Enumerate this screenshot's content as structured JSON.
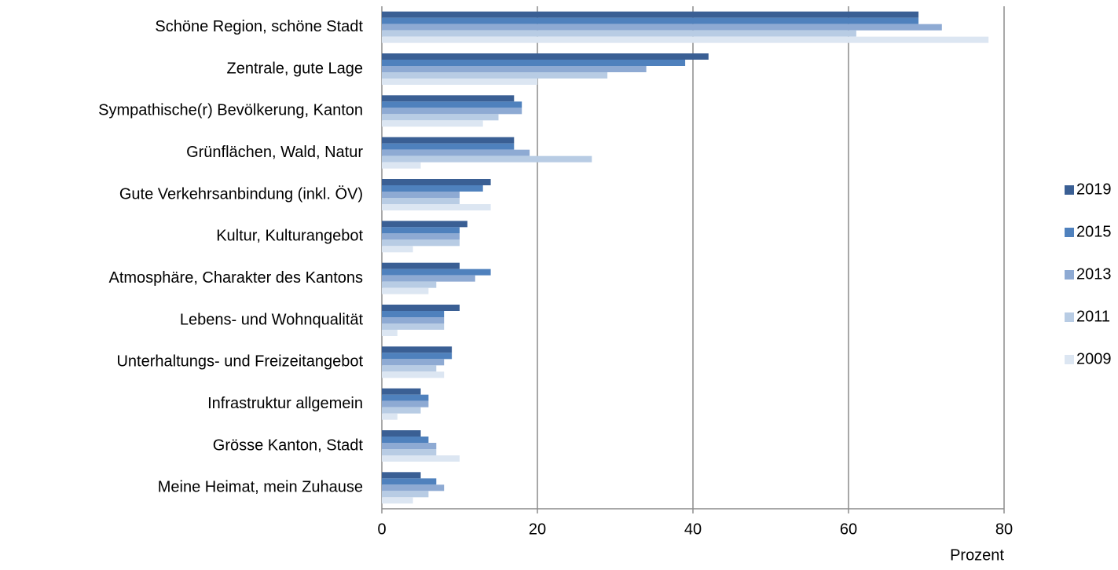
{
  "chart_data": {
    "type": "bar",
    "orientation": "horizontal",
    "x_label": "Prozent",
    "categories": [
      "Schöne Region, schöne Stadt",
      "Zentrale, gute Lage",
      "Sympathische(r) Bevölkerung, Kanton",
      "Grünflächen, Wald, Natur",
      "Gute Verkehrsanbindung (inkl. ÖV)",
      "Kultur, Kulturangebot",
      "Atmosphäre, Charakter des Kantons",
      "Lebens- und Wohnqualität",
      "Unterhaltungs- und Freizeitangebot",
      "Infrastruktur allgemein",
      "Grösse Kanton, Stadt",
      "Meine Heimat, mein Zuhause"
    ],
    "series": [
      {
        "name": "2019",
        "color": "#3a5f94",
        "values": [
          69,
          42,
          17,
          17,
          14,
          11,
          10,
          10,
          9,
          5,
          5,
          5
        ]
      },
      {
        "name": "2015",
        "color": "#4f81bd",
        "values": [
          69,
          39,
          18,
          17,
          13,
          10,
          14,
          8,
          9,
          6,
          6,
          7
        ]
      },
      {
        "name": "2013",
        "color": "#8eaad3",
        "values": [
          72,
          34,
          18,
          19,
          10,
          10,
          12,
          8,
          8,
          6,
          7,
          8
        ]
      },
      {
        "name": "2011",
        "color": "#b8cce4",
        "values": [
          61,
          29,
          15,
          27,
          10,
          10,
          7,
          8,
          7,
          5,
          7,
          6
        ]
      },
      {
        "name": "2009",
        "color": "#dce6f2",
        "values": [
          78,
          20,
          13,
          5,
          14,
          4,
          6,
          2,
          8,
          2,
          10,
          4
        ]
      }
    ],
    "xlim": [
      0,
      80
    ],
    "xticks": [
      0,
      20,
      40,
      60,
      80
    ],
    "grid": true,
    "legend": "right"
  }
}
